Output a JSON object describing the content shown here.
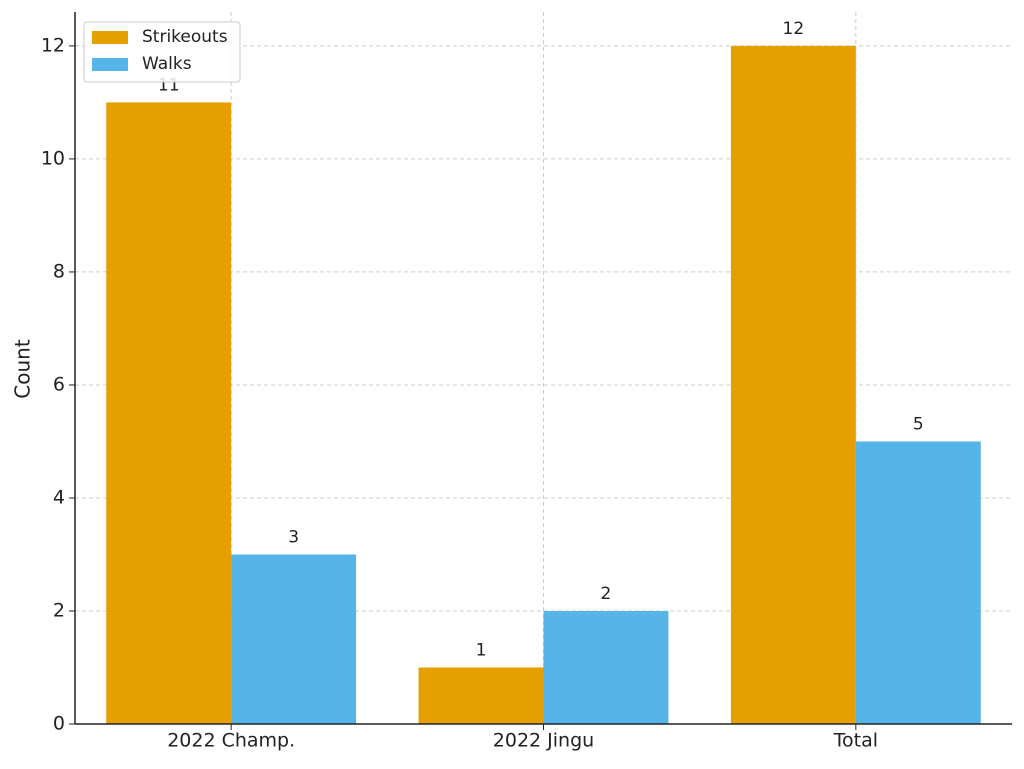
{
  "chart_data": {
    "type": "bar",
    "ylabel": "Count",
    "categories": [
      "2022 Champ.",
      "2022 Jingu",
      "Total"
    ],
    "series": [
      {
        "name": "Strikeouts",
        "color": "#e69f00",
        "values": [
          11,
          1,
          12
        ]
      },
      {
        "name": "Walks",
        "color": "#56b4e9",
        "values": [
          3,
          2,
          5
        ]
      }
    ],
    "ylim": [
      0,
      12.6
    ],
    "yticks": [
      0,
      2,
      4,
      6,
      8,
      10,
      12
    ],
    "grid": true,
    "legend": "upper left"
  }
}
